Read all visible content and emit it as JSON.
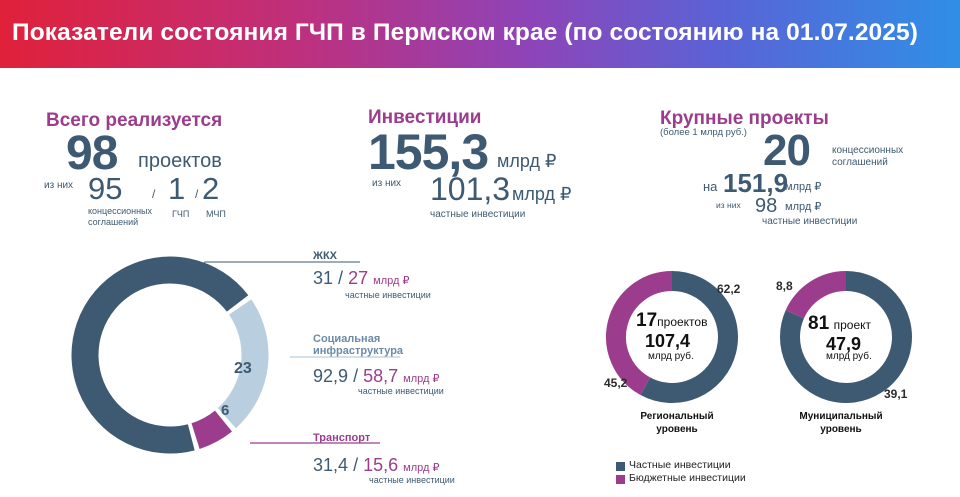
{
  "header": {
    "title": "Показатели состояния ГЧП в Пермском крае (по состоянию на 01.07.2025)"
  },
  "total": {
    "heading": "Всего реализуется",
    "count": "98",
    "count_unit": "проектов",
    "of_them": "из них",
    "concessions": "95",
    "concessions_label": "концессионных\nсоглашений",
    "gchp": "1",
    "gchp_label": "ГЧП",
    "mchp": "2",
    "mchp_label": "МЧП",
    "sep1": "/",
    "sep2": "/"
  },
  "investments": {
    "heading": "Инвестиции",
    "total": "155,3",
    "total_unit": "млрд ₽",
    "of_them": "из них",
    "private": "101,3",
    "private_unit": "млрд ₽",
    "private_label": "частные инвестиции"
  },
  "large_projects": {
    "heading": "Крупные проекты",
    "subheading": "(более 1 млрд руб.)",
    "count": "20",
    "count_label": "концессионных\nсоглашений",
    "on_label": "на",
    "amount": "151,9",
    "amount_unit": "млрд ₽",
    "of_them": "из них",
    "private": "98",
    "private_unit": "млрд ₽",
    "private_label": "частные инвестиции"
  },
  "sectors": [
    {
      "name": "ЖКХ",
      "total": "31",
      "private": "27",
      "unit": "млрд ₽",
      "label": "частные инвестиции",
      "sep": "/"
    },
    {
      "name": "Социальная\nинфраструктура",
      "total": "92,9",
      "private": "58,7",
      "unit": "млрд ₽",
      "label": "частные инвестиции",
      "sep": "/"
    },
    {
      "name": "Транспорт",
      "total": "31,4",
      "private": "15,6",
      "unit": "млрд ₽",
      "label": "частные инвестиции",
      "sep": "/"
    }
  ],
  "regional": {
    "count": "17",
    "count_unit": "проектов",
    "amount": "107,4",
    "amount_unit": "млрд руб.",
    "title": "Региональный\nуровень"
  },
  "municipal": {
    "count": "81",
    "count_unit": "проект",
    "amount": "47,9",
    "amount_unit": "млрд руб.",
    "title": "Муниципальный\nуровень"
  },
  "legend": [
    {
      "label": "Частные инвестиции",
      "color": "#3e5a72"
    },
    {
      "label": "Бюджетные инвестиции",
      "color": "#9b3d8c"
    }
  ],
  "chart_data": [
    {
      "type": "pie",
      "categories": [
        "ЖКХ",
        "Социальная инфраструктура",
        "Транспорт"
      ],
      "values": [
        69,
        23,
        6
      ],
      "colors": [
        "#3e5a72",
        "#b9cfe0",
        "#9b3d8c"
      ]
    },
    {
      "type": "pie",
      "categories": [
        "Частные инвестиции",
        "Бюджетные инвестиции"
      ],
      "values": [
        62.2,
        45.2
      ],
      "labels": [
        "62,2",
        "45,2"
      ],
      "colors": [
        "#3e5a72",
        "#9b3d8c"
      ]
    },
    {
      "type": "pie",
      "categories": [
        "Частные инвестиции",
        "Бюджетные инвестиции"
      ],
      "values": [
        39.1,
        8.8
      ],
      "labels": [
        "39,1",
        "8,8"
      ],
      "colors": [
        "#3e5a72",
        "#9b3d8c"
      ]
    }
  ]
}
